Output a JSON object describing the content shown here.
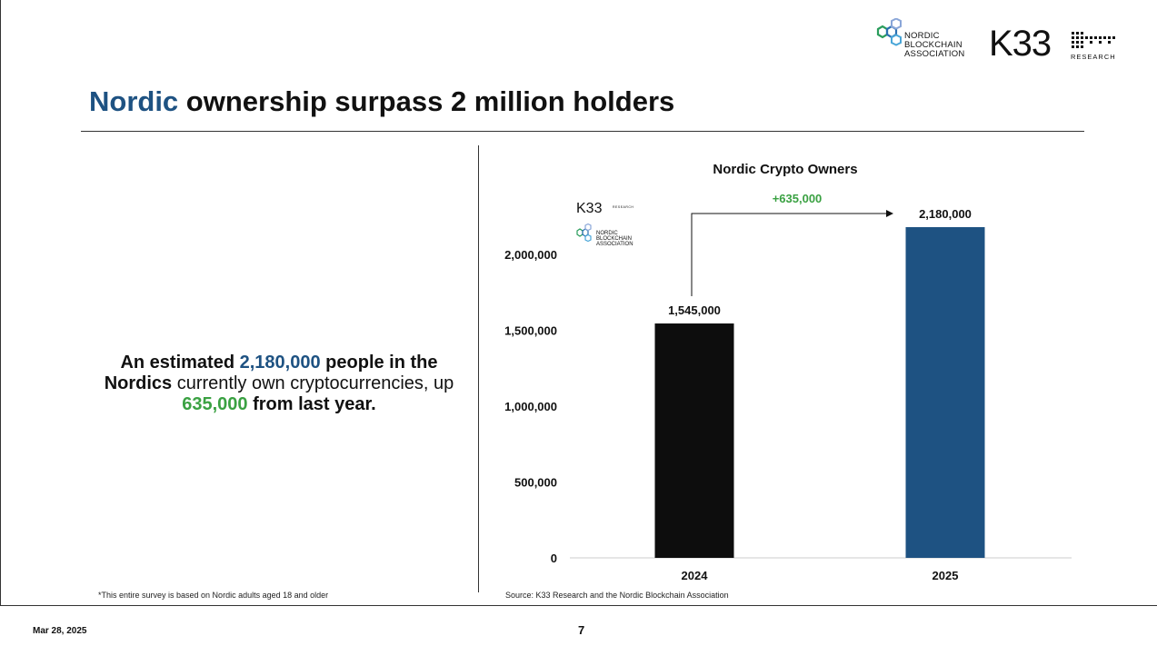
{
  "header": {
    "nba_logo_text": [
      "NORDIC",
      "BLOCKCHAIN",
      "ASSOCIATION"
    ],
    "k33_logo_text": "K33",
    "k33_logo_sub": "RESEARCH"
  },
  "title": {
    "accent": "Nordic",
    "rest": " ownership surpass 2 million holders"
  },
  "summary": {
    "p1": "An estimated ",
    "v1": "2,180,000",
    "p2": " people in the ",
    "p3": "Nordics",
    "p4": " currently own cryptocurrencies, up ",
    "v2": "635,000",
    "p5": " from last year."
  },
  "footnote": "*This entire survey is based on Nordic adults aged 18 and older",
  "source": "Source: K33 Research and the Nordic Blockchain Association",
  "footer": {
    "date": "Mar 28, 2025",
    "page": "7"
  },
  "colors": {
    "accent_blue": "#1e5282",
    "green": "#3aa142",
    "bar_2024": "#0d0d0d",
    "bar_2025": "#1e5282"
  },
  "chart_data": {
    "type": "bar",
    "title": "Nordic Crypto Owners",
    "categories": [
      "2024",
      "2025"
    ],
    "values": [
      1545000,
      2180000
    ],
    "value_labels": [
      "1,545,000",
      "2,180,000"
    ],
    "ylim": [
      0,
      2180000
    ],
    "yticks": [
      0,
      500000,
      1000000,
      1500000,
      2000000
    ],
    "ytick_labels": [
      "0",
      "500,000",
      "1,000,000",
      "1,500,000",
      "2,000,000"
    ],
    "annotation": "+635,000",
    "grid": false,
    "watermark": {
      "k33": "K33",
      "k33_sub": "RESEARCH",
      "nba": [
        "NORDIC",
        "BLOCKCHAIN",
        "ASSOCIATION"
      ]
    }
  }
}
